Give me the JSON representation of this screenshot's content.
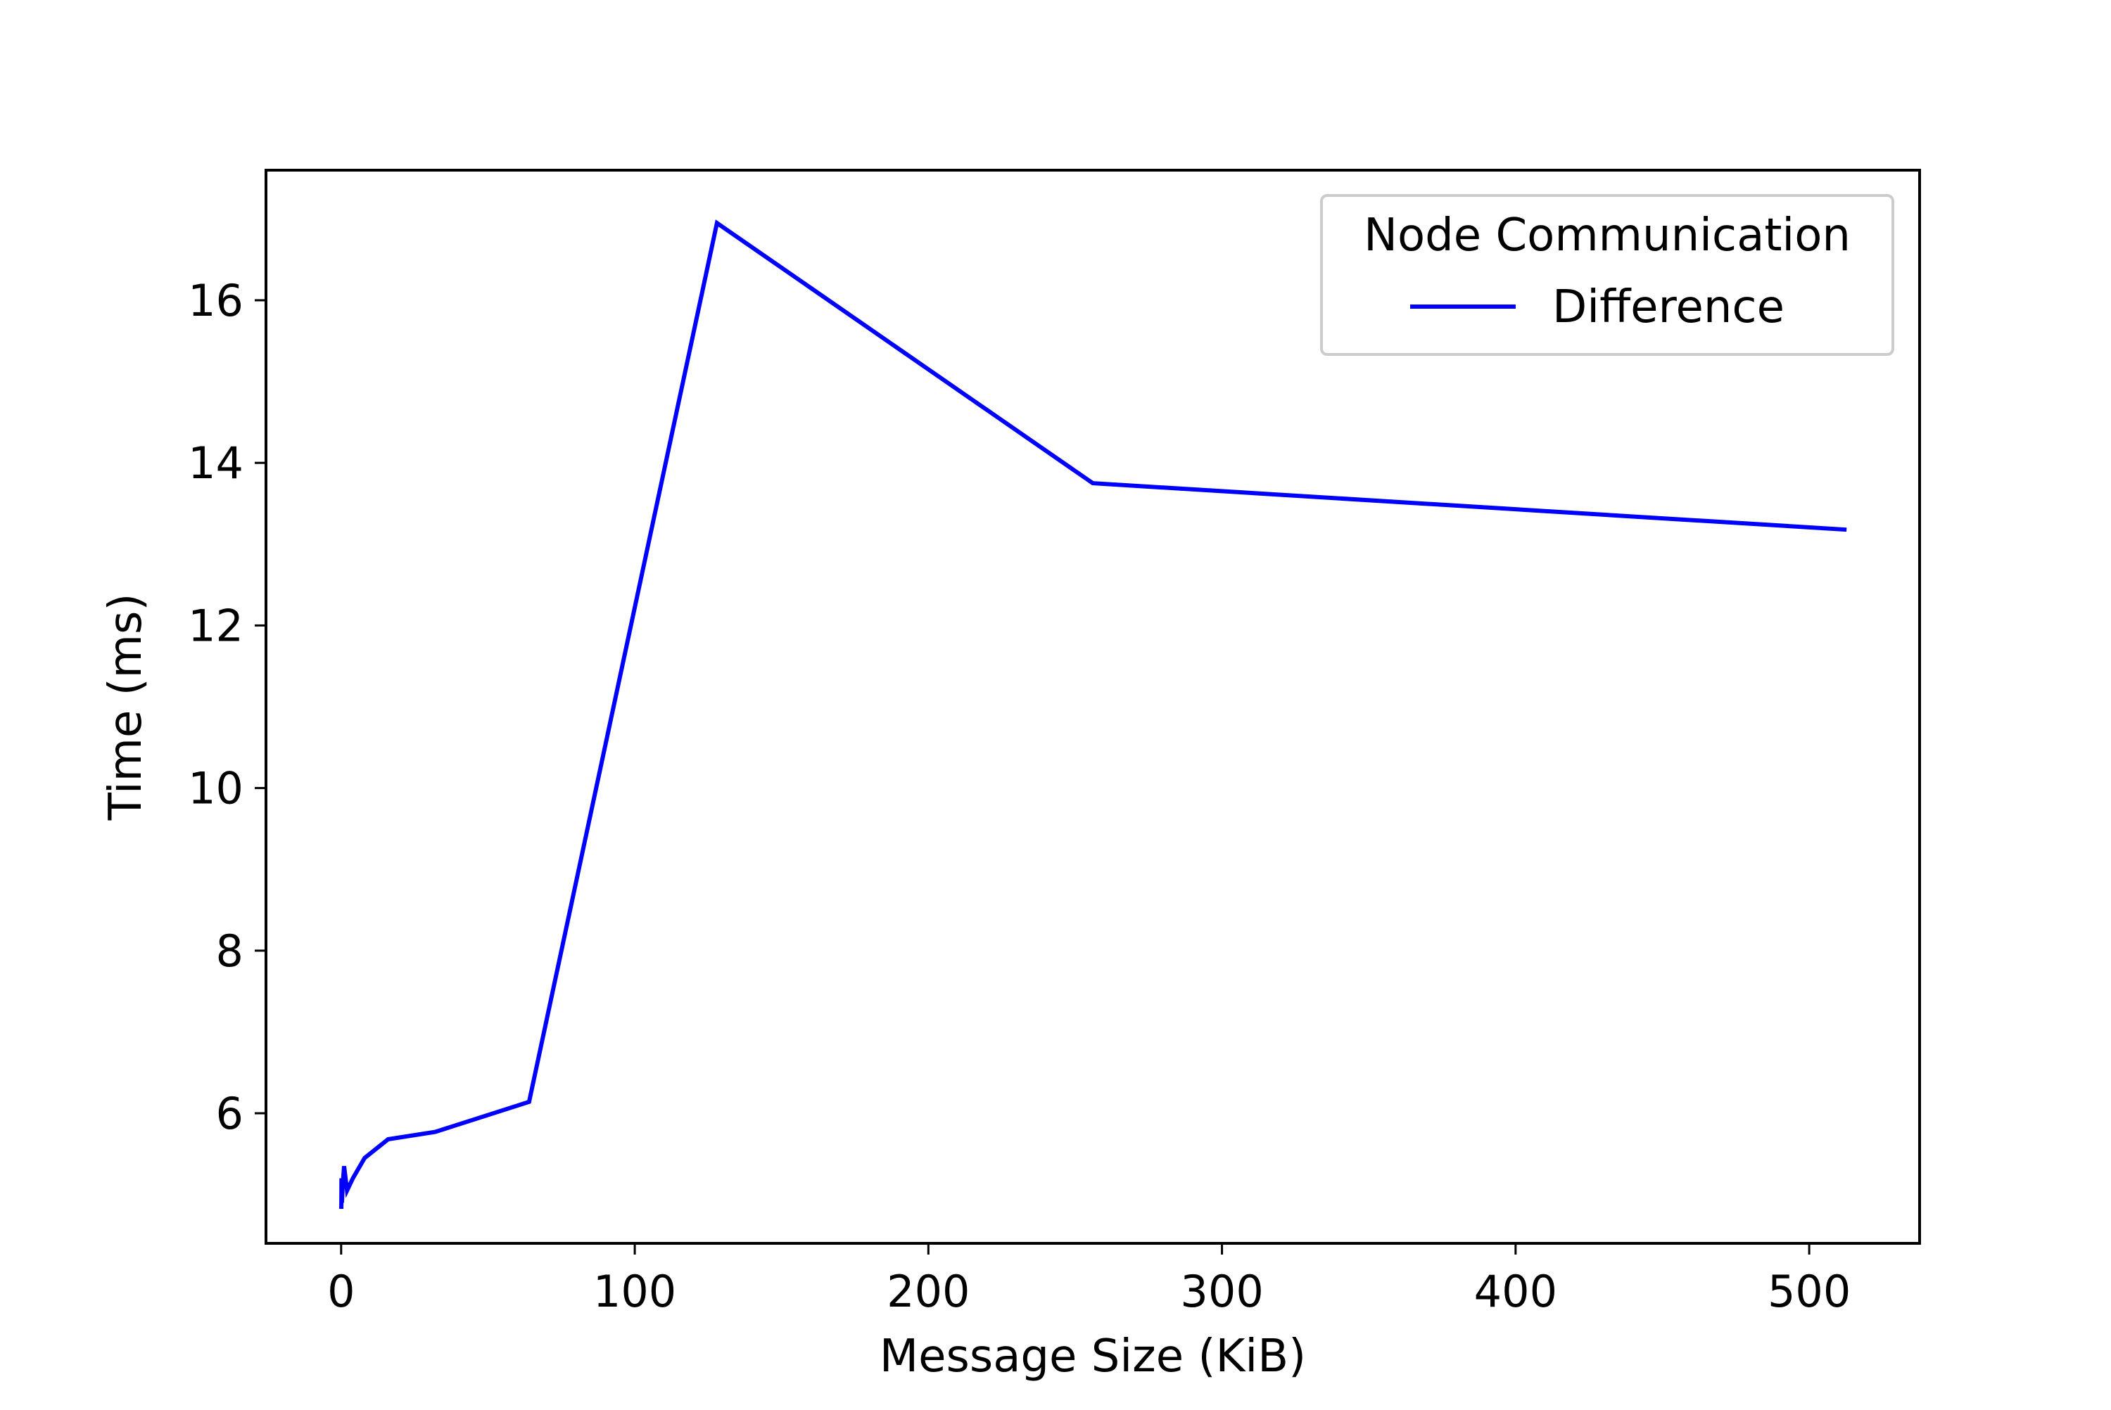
{
  "chart_data": {
    "type": "line",
    "title": "",
    "xlabel": "Message Size (KiB)",
    "ylabel": "Time (ms)",
    "xlim": [
      -25.6,
      537.6
    ],
    "ylim": [
      4.4,
      17.6
    ],
    "xticks": [
      0,
      100,
      200,
      300,
      400,
      500
    ],
    "yticks": [
      6,
      8,
      10,
      12,
      14,
      16
    ],
    "grid": false,
    "legend": {
      "title": "Node Communication",
      "placement": "top-right"
    },
    "series": [
      {
        "name": "Difference",
        "color": "#0000ff",
        "x": [
          0.0625,
          0.125,
          0.25,
          0.5,
          1,
          2,
          4,
          8,
          16,
          32,
          64,
          128,
          256,
          512
        ],
        "y": [
          4.85,
          5.2,
          4.9,
          5.1,
          5.35,
          5.05,
          5.2,
          5.45,
          5.68,
          5.77,
          6.14,
          16.95,
          13.75,
          13.18
        ]
      }
    ]
  }
}
